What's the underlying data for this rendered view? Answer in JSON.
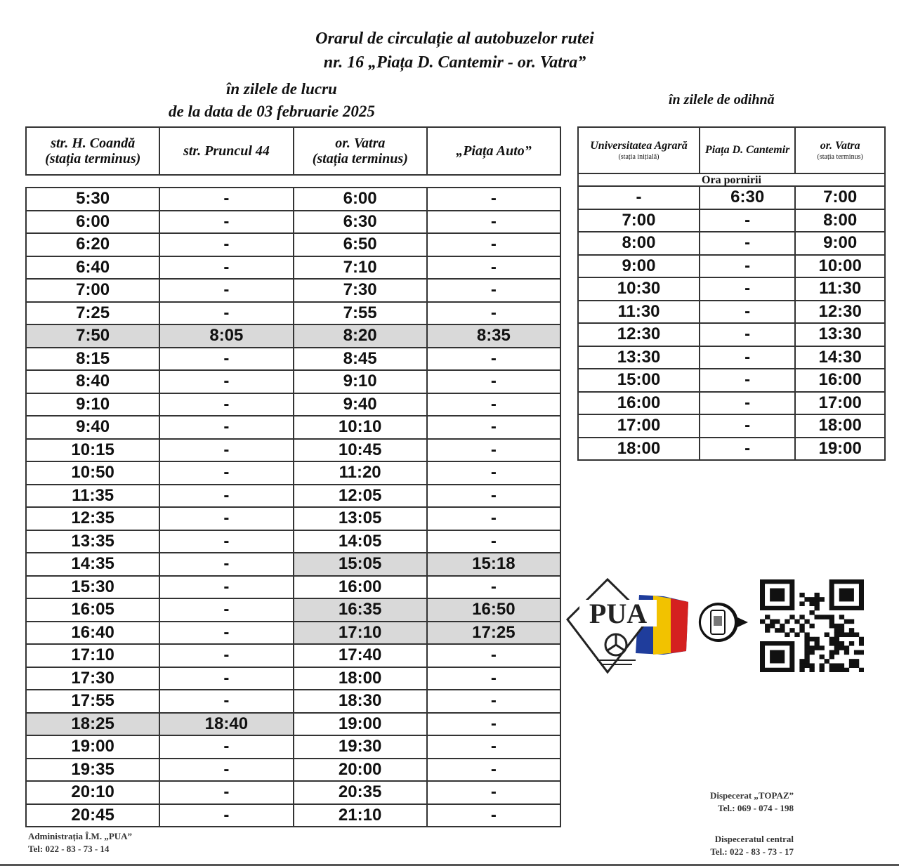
{
  "title": {
    "line1": "Orarul de circulație al autobuzelor rutei",
    "line2": "nr. 16 „Piața D. Cantemir - or. Vatra”"
  },
  "weekdays": {
    "heading1": "în zilele de lucru",
    "heading2": "de la data de 03 februarie 2025",
    "columns": [
      {
        "name": "str. H. Coandă",
        "sub": "(stația terminus)"
      },
      {
        "name": "str. Pruncul 44",
        "sub": ""
      },
      {
        "name": "or. Vatra",
        "sub": "(stația terminus)"
      },
      {
        "name": "„Piața Auto”",
        "sub": ""
      }
    ],
    "highlight_color": "#d9d9d9",
    "rows": [
      {
        "cells": [
          "5:30",
          "-",
          "6:00",
          "-"
        ],
        "highlight": []
      },
      {
        "cells": [
          "6:00",
          "-",
          "6:30",
          "-"
        ],
        "highlight": []
      },
      {
        "cells": [
          "6:20",
          "-",
          "6:50",
          "-"
        ],
        "highlight": []
      },
      {
        "cells": [
          "6:40",
          "-",
          "7:10",
          "-"
        ],
        "highlight": []
      },
      {
        "cells": [
          "7:00",
          "-",
          "7:30",
          "-"
        ],
        "highlight": []
      },
      {
        "cells": [
          "7:25",
          "-",
          "7:55",
          "-"
        ],
        "highlight": []
      },
      {
        "cells": [
          "7:50",
          "8:05",
          "8:20",
          "8:35"
        ],
        "highlight": [
          0,
          1,
          2,
          3
        ]
      },
      {
        "cells": [
          "8:15",
          "-",
          "8:45",
          "-"
        ],
        "highlight": []
      },
      {
        "cells": [
          "8:40",
          "-",
          "9:10",
          "-"
        ],
        "highlight": []
      },
      {
        "cells": [
          "9:10",
          "-",
          "9:40",
          "-"
        ],
        "highlight": []
      },
      {
        "cells": [
          "9:40",
          "-",
          "10:10",
          "-"
        ],
        "highlight": []
      },
      {
        "cells": [
          "10:15",
          "-",
          "10:45",
          "-"
        ],
        "highlight": []
      },
      {
        "cells": [
          "10:50",
          "-",
          "11:20",
          "-"
        ],
        "highlight": []
      },
      {
        "cells": [
          "11:35",
          "-",
          "12:05",
          "-"
        ],
        "highlight": []
      },
      {
        "cells": [
          "12:35",
          "-",
          "13:05",
          "-"
        ],
        "highlight": []
      },
      {
        "cells": [
          "13:35",
          "-",
          "14:05",
          "-"
        ],
        "highlight": []
      },
      {
        "cells": [
          "14:35",
          "-",
          "15:05",
          "15:18"
        ],
        "highlight": [
          2,
          3
        ]
      },
      {
        "cells": [
          "15:30",
          "-",
          "16:00",
          "-"
        ],
        "highlight": []
      },
      {
        "cells": [
          "16:05",
          "-",
          "16:35",
          "16:50"
        ],
        "highlight": [
          2,
          3
        ]
      },
      {
        "cells": [
          "16:40",
          "-",
          "17:10",
          "17:25"
        ],
        "highlight": [
          2,
          3
        ]
      },
      {
        "cells": [
          "17:10",
          "-",
          "17:40",
          "-"
        ],
        "highlight": []
      },
      {
        "cells": [
          "17:30",
          "-",
          "18:00",
          "-"
        ],
        "highlight": []
      },
      {
        "cells": [
          "17:55",
          "-",
          "18:30",
          "-"
        ],
        "highlight": []
      },
      {
        "cells": [
          "18:25",
          "18:40",
          "19:00",
          "-"
        ],
        "highlight": [
          0,
          1
        ]
      },
      {
        "cells": [
          "19:00",
          "-",
          "19:30",
          "-"
        ],
        "highlight": []
      },
      {
        "cells": [
          "19:35",
          "-",
          "20:00",
          "-"
        ],
        "highlight": []
      },
      {
        "cells": [
          "20:10",
          "-",
          "20:35",
          "-"
        ],
        "highlight": []
      },
      {
        "cells": [
          "20:45",
          "-",
          "21:10",
          "-"
        ],
        "highlight": []
      }
    ]
  },
  "weekend": {
    "heading": "în zilele de odihnă",
    "columns": [
      {
        "name": "Universitatea Agrară",
        "sub": "(stația inițială)"
      },
      {
        "name": "Piața D. Cantemir",
        "sub": ""
      },
      {
        "name": "or. Vatra",
        "sub": "(stația terminus)"
      }
    ],
    "subheader": "Ora pornirii",
    "rows": [
      [
        "-",
        "6:30",
        "7:00"
      ],
      [
        "7:00",
        "-",
        "8:00"
      ],
      [
        "8:00",
        "-",
        "9:00"
      ],
      [
        "9:00",
        "-",
        "10:00"
      ],
      [
        "10:30",
        "-",
        "11:30"
      ],
      [
        "11:30",
        "-",
        "12:30"
      ],
      [
        "12:30",
        "-",
        "13:30"
      ],
      [
        "13:30",
        "-",
        "14:30"
      ],
      [
        "15:00",
        "-",
        "16:00"
      ],
      [
        "16:00",
        "-",
        "17:00"
      ],
      [
        "17:00",
        "-",
        "18:00"
      ],
      [
        "18:00",
        "-",
        "19:00"
      ]
    ]
  },
  "logo": {
    "text": "PUA",
    "flag_colors": [
      "#1f3d9c",
      "#f2c200",
      "#d42020"
    ]
  },
  "footer": {
    "admin_name": "Administrația Î.M. „PUA”",
    "admin_tel": "Tel:  022 - 83 - 73 - 14",
    "topaz_name": "Dispecerat „TOPAZ”",
    "topaz_tel": "Tel.:  069 - 074 - 198",
    "central_name": "Dispeceratul central",
    "central_tel": "Tel.:  022 -  83 - 73 - 17"
  }
}
